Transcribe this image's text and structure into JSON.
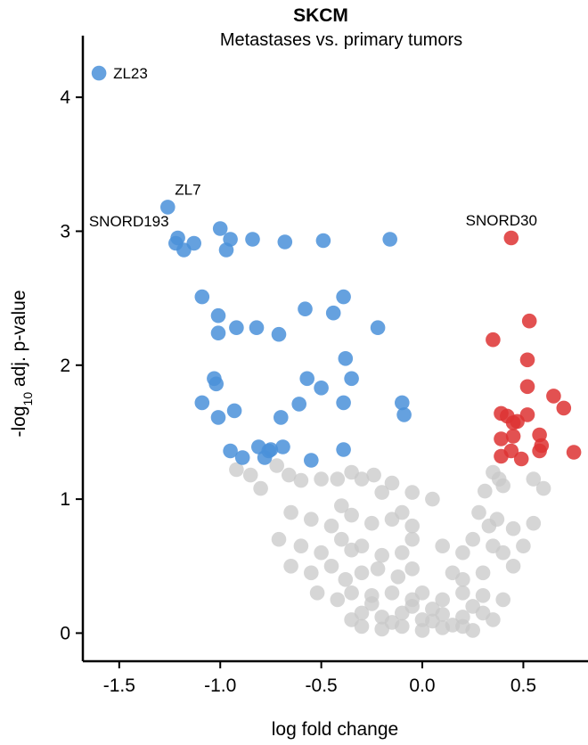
{
  "chart_data": {
    "type": "scatter",
    "title": "SKCM",
    "subtitle": "Metastases vs. primary tumors",
    "xlabel": "log fold change",
    "ylabel_prefix": "-log",
    "ylabel_subscript": "10",
    "ylabel_suffix": " adj. p-value",
    "xlim": [
      -1.68,
      0.82
    ],
    "ylim": [
      -0.21,
      4.46
    ],
    "xticks": [
      -1.5,
      -1.0,
      -0.5,
      0.0,
      0.5
    ],
    "xtick_labels": [
      "-1.5",
      "-1.0",
      "-0.5",
      "0.0",
      "0.5"
    ],
    "yticks": [
      0,
      1,
      2,
      3,
      4
    ],
    "ytick_labels": [
      "0",
      "1",
      "2",
      "3",
      "4"
    ],
    "grid": false,
    "legend": "none",
    "colors": {
      "down": "#4a90d9",
      "up": "#dd3333",
      "ns": "#c8c8c8"
    },
    "series": [
      {
        "group": "down",
        "points": [
          [
            -1.6,
            4.18
          ],
          [
            -1.26,
            3.18
          ],
          [
            -1.21,
            2.95
          ],
          [
            -1.22,
            2.91
          ],
          [
            -1.18,
            2.86
          ],
          [
            -1.13,
            2.91
          ],
          [
            -1.0,
            3.02
          ],
          [
            -0.95,
            2.94
          ],
          [
            -0.97,
            2.86
          ],
          [
            -0.84,
            2.94
          ],
          [
            -0.68,
            2.92
          ],
          [
            -0.49,
            2.93
          ],
          [
            -0.16,
            2.94
          ],
          [
            -1.09,
            2.51
          ],
          [
            -1.01,
            2.37
          ],
          [
            -1.01,
            2.24
          ],
          [
            -0.92,
            2.28
          ],
          [
            -0.82,
            2.28
          ],
          [
            -0.71,
            2.23
          ],
          [
            -0.58,
            2.42
          ],
          [
            -0.44,
            2.39
          ],
          [
            -0.39,
            2.51
          ],
          [
            -0.22,
            2.28
          ],
          [
            -0.38,
            2.05
          ],
          [
            -0.35,
            1.9
          ],
          [
            -0.57,
            1.9
          ],
          [
            -0.5,
            1.83
          ],
          [
            -1.03,
            1.9
          ],
          [
            -1.02,
            1.86
          ],
          [
            -1.09,
            1.72
          ],
          [
            -1.01,
            1.61
          ],
          [
            -0.93,
            1.66
          ],
          [
            -0.7,
            1.61
          ],
          [
            -0.61,
            1.71
          ],
          [
            -0.39,
            1.72
          ],
          [
            -0.1,
            1.72
          ],
          [
            -0.09,
            1.63
          ],
          [
            -0.95,
            1.36
          ],
          [
            -0.89,
            1.31
          ],
          [
            -0.81,
            1.39
          ],
          [
            -0.76,
            1.36
          ],
          [
            -0.75,
            1.37
          ],
          [
            -0.78,
            1.31
          ],
          [
            -0.69,
            1.39
          ],
          [
            -0.55,
            1.29
          ],
          [
            -0.39,
            1.37
          ]
        ]
      },
      {
        "group": "up",
        "points": [
          [
            0.44,
            2.95
          ],
          [
            0.53,
            2.33
          ],
          [
            0.35,
            2.19
          ],
          [
            0.52,
            2.04
          ],
          [
            0.52,
            1.84
          ],
          [
            0.65,
            1.77
          ],
          [
            0.7,
            1.68
          ],
          [
            0.39,
            1.64
          ],
          [
            0.42,
            1.62
          ],
          [
            0.45,
            1.57
          ],
          [
            0.47,
            1.58
          ],
          [
            0.52,
            1.63
          ],
          [
            0.58,
            1.48
          ],
          [
            0.39,
            1.45
          ],
          [
            0.45,
            1.47
          ],
          [
            0.44,
            1.36
          ],
          [
            0.39,
            1.32
          ],
          [
            0.49,
            1.3
          ],
          [
            0.58,
            1.36
          ],
          [
            0.59,
            1.4
          ],
          [
            0.75,
            1.35
          ]
        ]
      },
      {
        "group": "ns",
        "points": [
          [
            -0.92,
            1.22
          ],
          [
            -0.85,
            1.18
          ],
          [
            -0.72,
            1.25
          ],
          [
            -0.66,
            1.18
          ],
          [
            -0.8,
            1.08
          ],
          [
            -0.6,
            1.14
          ],
          [
            -0.5,
            1.15
          ],
          [
            -0.42,
            1.15
          ],
          [
            -0.35,
            1.2
          ],
          [
            -0.3,
            1.15
          ],
          [
            -0.24,
            1.18
          ],
          [
            -0.2,
            1.05
          ],
          [
            -0.15,
            1.12
          ],
          [
            -0.05,
            1.05
          ],
          [
            0.05,
            1.0
          ],
          [
            0.35,
            1.2
          ],
          [
            0.38,
            1.15
          ],
          [
            0.31,
            1.06
          ],
          [
            0.4,
            1.1
          ],
          [
            0.55,
            1.15
          ],
          [
            0.6,
            1.08
          ],
          [
            -0.65,
            0.9
          ],
          [
            -0.55,
            0.85
          ],
          [
            -0.45,
            0.8
          ],
          [
            -0.4,
            0.95
          ],
          [
            -0.35,
            0.88
          ],
          [
            -0.25,
            0.82
          ],
          [
            -0.15,
            0.85
          ],
          [
            -0.1,
            0.9
          ],
          [
            -0.05,
            0.8
          ],
          [
            0.28,
            0.9
          ],
          [
            0.33,
            0.8
          ],
          [
            0.37,
            0.85
          ],
          [
            0.45,
            0.78
          ],
          [
            0.55,
            0.82
          ],
          [
            -0.71,
            0.7
          ],
          [
            -0.6,
            0.65
          ],
          [
            -0.5,
            0.6
          ],
          [
            -0.4,
            0.7
          ],
          [
            -0.35,
            0.62
          ],
          [
            -0.3,
            0.65
          ],
          [
            -0.2,
            0.58
          ],
          [
            -0.1,
            0.6
          ],
          [
            -0.05,
            0.7
          ],
          [
            0.1,
            0.65
          ],
          [
            0.2,
            0.6
          ],
          [
            0.25,
            0.7
          ],
          [
            0.35,
            0.65
          ],
          [
            0.4,
            0.6
          ],
          [
            0.5,
            0.65
          ],
          [
            -0.65,
            0.5
          ],
          [
            -0.55,
            0.45
          ],
          [
            -0.45,
            0.5
          ],
          [
            -0.38,
            0.4
          ],
          [
            -0.3,
            0.45
          ],
          [
            -0.22,
            0.48
          ],
          [
            -0.12,
            0.42
          ],
          [
            -0.05,
            0.48
          ],
          [
            0.15,
            0.45
          ],
          [
            0.2,
            0.4
          ],
          [
            0.3,
            0.45
          ],
          [
            -0.52,
            0.3
          ],
          [
            -0.42,
            0.25
          ],
          [
            -0.35,
            0.3
          ],
          [
            -0.25,
            0.28
          ],
          [
            -0.15,
            0.3
          ],
          [
            -0.05,
            0.25
          ],
          [
            0.0,
            0.3
          ],
          [
            0.1,
            0.25
          ],
          [
            0.2,
            0.3
          ],
          [
            0.3,
            0.28
          ],
          [
            0.4,
            0.25
          ],
          [
            -0.3,
            0.15
          ],
          [
            -0.2,
            0.12
          ],
          [
            -0.1,
            0.15
          ],
          [
            0.0,
            0.1
          ],
          [
            0.1,
            0.14
          ],
          [
            0.2,
            0.12
          ],
          [
            0.3,
            0.15
          ],
          [
            -0.3,
            0.05
          ],
          [
            -0.2,
            0.03
          ],
          [
            -0.1,
            0.05
          ],
          [
            0.0,
            0.02
          ],
          [
            0.1,
            0.04
          ],
          [
            0.2,
            0.05
          ],
          [
            0.25,
            0.02
          ],
          [
            -0.35,
            0.1
          ],
          [
            0.35,
            0.1
          ],
          [
            -0.15,
            0.08
          ],
          [
            0.15,
            0.06
          ],
          [
            0.05,
            0.18
          ],
          [
            -0.05,
            0.2
          ],
          [
            0.05,
            0.09
          ],
          [
            -0.25,
            0.22
          ],
          [
            0.25,
            0.2
          ],
          [
            0.45,
            0.5
          ]
        ]
      }
    ],
    "annotations": [
      {
        "text": "ZL23",
        "x": -1.6,
        "y": 4.18,
        "anchor": "start",
        "dx": 16,
        "dy": 6
      },
      {
        "text": "ZL7",
        "x": -1.26,
        "y": 3.18,
        "anchor": "start",
        "dx": 8,
        "dy": -14
      },
      {
        "text": "SNORD193",
        "x": -1.21,
        "y": 2.95,
        "anchor": "end",
        "dx": -10,
        "dy": -13
      },
      {
        "text": "SNORD30",
        "x": 0.44,
        "y": 2.95,
        "anchor": "middle",
        "dx": -11,
        "dy": -14
      }
    ]
  }
}
